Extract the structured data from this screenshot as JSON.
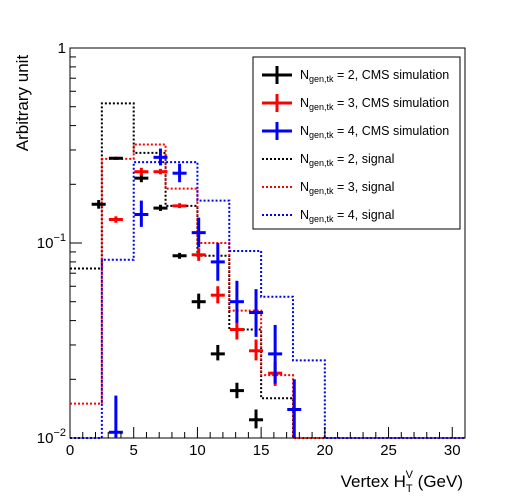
{
  "chart_data": {
    "type": "line",
    "x_ticks": [
      0,
      5,
      10,
      15,
      20,
      25,
      30
    ],
    "xlim": [
      0,
      31
    ],
    "ylim": [
      0.01,
      1
    ],
    "y_scale": "log",
    "y_tick_labels": [
      {
        "value": 1,
        "base": "1",
        "exp": ""
      },
      {
        "value": 0.1,
        "base": "10",
        "exp": "−1"
      },
      {
        "value": 0.01,
        "base": "10",
        "exp": "−2"
      }
    ],
    "xlabel": {
      "main": "Vertex H",
      "sub": "T",
      "sup": "V",
      "unit": " (GeV)"
    },
    "ylabel": "Arbitrary unit",
    "bin_edges": [
      0,
      2.5,
      5,
      7.5,
      10,
      12.5,
      15,
      17.5,
      20,
      22.5,
      25,
      27.5,
      30,
      31
    ],
    "colors": {
      "ngen2": "#000000",
      "ngen3": "#ff0000",
      "ngen4": "#0000ff"
    },
    "series": [
      {
        "kind": "points",
        "color": "#000000",
        "legend": {
          "main": "N",
          "sub": "gen,tk",
          "rest": " = 2, CMS simulation"
        },
        "points": [
          {
            "x": 2.25,
            "y": 0.158,
            "xerr": 0.55,
            "ylo": 0.15,
            "yhi": 0.166
          },
          {
            "x": 3.6,
            "y": 0.272,
            "xerr": 0.55,
            "ylo": 0.267,
            "yhi": 0.277
          },
          {
            "x": 5.6,
            "y": 0.215,
            "xerr": 0.55,
            "ylo": 0.205,
            "yhi": 0.226
          },
          {
            "x": 7.1,
            "y": 0.151,
            "xerr": 0.55,
            "ylo": 0.146,
            "yhi": 0.157
          },
          {
            "x": 8.6,
            "y": 0.086,
            "xerr": 0.55,
            "ylo": 0.083,
            "yhi": 0.089
          },
          {
            "x": 10.1,
            "y": 0.05,
            "xerr": 0.55,
            "ylo": 0.046,
            "yhi": 0.055
          },
          {
            "x": 11.6,
            "y": 0.027,
            "xerr": 0.55,
            "ylo": 0.025,
            "yhi": 0.03
          },
          {
            "x": 13.1,
            "y": 0.0175,
            "xerr": 0.55,
            "ylo": 0.016,
            "yhi": 0.0192
          },
          {
            "x": 14.6,
            "y": 0.0124,
            "xerr": 0.55,
            "ylo": 0.0112,
            "yhi": 0.014
          }
        ]
      },
      {
        "kind": "points",
        "color": "#ff0000",
        "legend": {
          "main": "N",
          "sub": "gen,tk",
          "rest": " = 3, CMS simulation"
        },
        "points": [
          {
            "x": 3.6,
            "y": 0.132,
            "xerr": 0.55,
            "ylo": 0.127,
            "yhi": 0.137
          },
          {
            "x": 5.6,
            "y": 0.232,
            "xerr": 0.55,
            "ylo": 0.221,
            "yhi": 0.243
          },
          {
            "x": 7.1,
            "y": 0.232,
            "xerr": 0.55,
            "ylo": 0.225,
            "yhi": 0.24
          },
          {
            "x": 8.6,
            "y": 0.155,
            "xerr": 0.55,
            "ylo": 0.151,
            "yhi": 0.16
          },
          {
            "x": 10.1,
            "y": 0.087,
            "xerr": 0.55,
            "ylo": 0.081,
            "yhi": 0.094
          },
          {
            "x": 11.6,
            "y": 0.054,
            "xerr": 0.55,
            "ylo": 0.049,
            "yhi": 0.06
          },
          {
            "x": 13.1,
            "y": 0.036,
            "xerr": 0.55,
            "ylo": 0.032,
            "yhi": 0.041
          },
          {
            "x": 14.6,
            "y": 0.028,
            "xerr": 0.55,
            "ylo": 0.025,
            "yhi": 0.032
          },
          {
            "x": 16.1,
            "y": 0.0215,
            "xerr": 0.55,
            "ylo": 0.0185,
            "yhi": 0.0245
          }
        ]
      },
      {
        "kind": "points",
        "color": "#0000ff",
        "legend": {
          "main": "N",
          "sub": "gen,tk",
          "rest": " = 4, CMS simulation"
        },
        "points": [
          {
            "x": 3.6,
            "y": 0.0107,
            "xerr": 0.55,
            "ylo": 0.0098,
            "yhi": 0.0165
          },
          {
            "x": 5.6,
            "y": 0.14,
            "xerr": 0.55,
            "ylo": 0.121,
            "yhi": 0.165
          },
          {
            "x": 7.1,
            "y": 0.275,
            "xerr": 0.55,
            "ylo": 0.25,
            "yhi": 0.305
          },
          {
            "x": 8.6,
            "y": 0.228,
            "xerr": 0.55,
            "ylo": 0.205,
            "yhi": 0.255
          },
          {
            "x": 10.1,
            "y": 0.113,
            "xerr": 0.55,
            "ylo": 0.095,
            "yhi": 0.135
          },
          {
            "x": 11.6,
            "y": 0.08,
            "xerr": 0.55,
            "ylo": 0.064,
            "yhi": 0.1
          },
          {
            "x": 13.1,
            "y": 0.05,
            "xerr": 0.55,
            "ylo": 0.039,
            "yhi": 0.064
          },
          {
            "x": 14.6,
            "y": 0.044,
            "xerr": 0.55,
            "ylo": 0.033,
            "yhi": 0.058
          },
          {
            "x": 16.1,
            "y": 0.027,
            "xerr": 0.55,
            "ylo": 0.019,
            "yhi": 0.038
          },
          {
            "x": 17.6,
            "y": 0.014,
            "xerr": 0.55,
            "ylo": 0.01,
            "yhi": 0.02
          }
        ]
      },
      {
        "kind": "step",
        "color": "#000000",
        "legend": {
          "main": "N",
          "sub": "gen,tk",
          "rest": " = 2, signal"
        },
        "values": [
          0.074,
          0.52,
          0.29,
          0.155,
          0.086,
          0.036,
          0.016,
          0.01,
          0.01,
          0.01,
          0.01,
          0.01,
          0.01
        ]
      },
      {
        "kind": "step",
        "color": "#ff0000",
        "legend": {
          "main": "N",
          "sub": "gen,tk",
          "rest": " = 3, signal"
        },
        "values": [
          0.015,
          0.27,
          0.32,
          0.19,
          0.1,
          0.045,
          0.021,
          0.01,
          0.01,
          0.01,
          0.01,
          0.01,
          0.01
        ]
      },
      {
        "kind": "step",
        "color": "#0000ff",
        "legend": {
          "main": "N",
          "sub": "gen,tk",
          "rest": " = 4, signal"
        },
        "values": [
          0.01,
          0.082,
          0.26,
          0.26,
          0.165,
          0.091,
          0.053,
          0.025,
          0.01,
          0.01,
          0.01,
          0.01,
          0.01
        ]
      }
    ]
  }
}
